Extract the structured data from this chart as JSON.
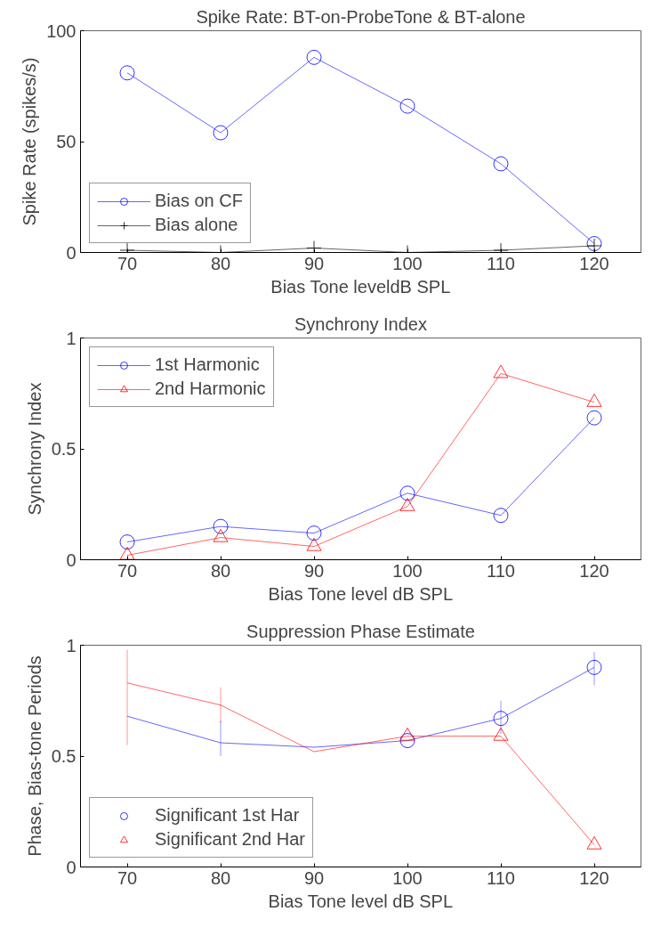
{
  "chart_data": [
    {
      "type": "line",
      "title": "Spike Rate: BT-on-ProbeTone & BT-alone",
      "xlabel": "Bias Tone leveldB SPL",
      "ylabel": "Spike Rate (spikes/s)",
      "x": [
        70,
        80,
        90,
        100,
        110,
        120
      ],
      "xlim": [
        65,
        125
      ],
      "xticks": [
        70,
        80,
        90,
        100,
        110,
        120
      ],
      "ylim": [
        0,
        100
      ],
      "yticks": [
        0,
        50,
        100
      ],
      "legend": "bottom left",
      "grid": false,
      "series": [
        {
          "name": "Bias on CF",
          "color": "#0000ff",
          "marker": "circle",
          "values": [
            81,
            54,
            88,
            66,
            40,
            4
          ]
        },
        {
          "name": "Bias alone",
          "color": "#000000",
          "marker": "cross",
          "values": [
            1,
            0,
            2,
            0,
            1,
            3
          ]
        }
      ]
    },
    {
      "type": "line",
      "title": "Synchrony Index",
      "xlabel": "Bias Tone level dB SPL",
      "ylabel": "Synchrony Index",
      "x": [
        70,
        80,
        90,
        100,
        110,
        120
      ],
      "xlim": [
        65,
        125
      ],
      "xticks": [
        70,
        80,
        90,
        100,
        110,
        120
      ],
      "ylim": [
        0,
        1
      ],
      "yticks": [
        0,
        0.5,
        1
      ],
      "legend": "top left",
      "grid": false,
      "series": [
        {
          "name": "1st Harmonic",
          "color": "#0000ff",
          "marker": "circle",
          "values": [
            0.08,
            0.15,
            0.12,
            0.3,
            0.2,
            0.64
          ]
        },
        {
          "name": "2nd Harmonic",
          "color": "#ff0000",
          "marker": "triangle",
          "values": [
            0.02,
            0.1,
            0.06,
            0.24,
            0.84,
            0.71
          ]
        }
      ]
    },
    {
      "type": "line",
      "title": "Suppression Phase Estimate",
      "xlabel": "Bias Tone level dB SPL",
      "ylabel": "Phase, Bias-tone Periods",
      "x": [
        70,
        80,
        90,
        100,
        110,
        120
      ],
      "xlim": [
        65,
        125
      ],
      "xticks": [
        70,
        80,
        90,
        100,
        110,
        120
      ],
      "ylim": [
        0,
        1
      ],
      "yticks": [
        0,
        0.5,
        1
      ],
      "legend": "bottom left",
      "grid": false,
      "series": [
        {
          "color": "#0000ff",
          "marker": "none",
          "values": [
            0.68,
            0.56,
            0.54,
            0.57,
            0.67,
            0.9
          ],
          "errors": [
            null,
            [
              0.5,
              0.66
            ],
            null,
            null,
            [
              0.6,
              0.75
            ],
            [
              0.82,
              0.97
            ]
          ]
        },
        {
          "color": "#ff0000",
          "marker": "none",
          "values": [
            0.83,
            0.73,
            0.52,
            0.59,
            0.59,
            0.1
          ],
          "errors": [
            [
              0.55,
              0.98
            ],
            [
              0.65,
              0.81
            ],
            null,
            null,
            null,
            null
          ]
        },
        {
          "type": "scatter",
          "name": "Significant 1st Har",
          "color": "#0000ff",
          "marker": "circle",
          "values": [
            null,
            null,
            null,
            0.57,
            0.67,
            0.9
          ]
        },
        {
          "type": "scatter",
          "name": "Significant 2nd Har",
          "color": "#ff0000",
          "marker": "triangle",
          "values": [
            null,
            null,
            null,
            0.59,
            0.59,
            0.1
          ]
        }
      ]
    }
  ]
}
